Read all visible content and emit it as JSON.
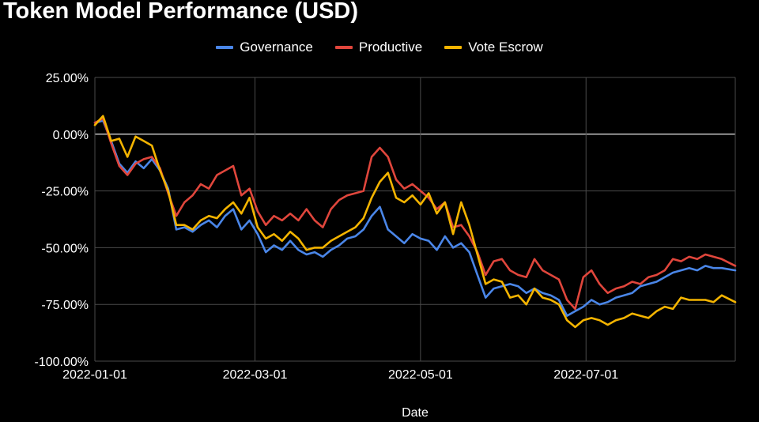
{
  "chart_data": {
    "type": "line",
    "title": "Token Model Performance (USD)",
    "xlabel": "Date",
    "ylabel": "",
    "ylim": [
      -100,
      25
    ],
    "xlim": [
      "2022-01-01",
      "2022-08-25"
    ],
    "grid": true,
    "legend": "top",
    "y_ticks": [
      "25.00%",
      "0.00%",
      "-25.00%",
      "-50.00%",
      "-75.00%",
      "-100.00%"
    ],
    "x_ticks": [
      "2022-01-01",
      "2022-03-01",
      "2022-05-01",
      "2022-07-01"
    ],
    "series": [
      {
        "name": "Governance",
        "color": "#4a86e8",
        "points": [
          [
            "2022-01-01",
            5
          ],
          [
            "2022-01-04",
            6
          ],
          [
            "2022-01-07",
            -3
          ],
          [
            "2022-01-10",
            -13
          ],
          [
            "2022-01-13",
            -17
          ],
          [
            "2022-01-16",
            -12
          ],
          [
            "2022-01-19",
            -15
          ],
          [
            "2022-01-22",
            -11
          ],
          [
            "2022-01-25",
            -16
          ],
          [
            "2022-01-28",
            -24
          ],
          [
            "2022-01-31",
            -42
          ],
          [
            "2022-02-03",
            -41
          ],
          [
            "2022-02-06",
            -43
          ],
          [
            "2022-02-09",
            -40
          ],
          [
            "2022-02-12",
            -38
          ],
          [
            "2022-02-15",
            -41
          ],
          [
            "2022-02-18",
            -36
          ],
          [
            "2022-02-21",
            -33
          ],
          [
            "2022-02-24",
            -42
          ],
          [
            "2022-02-27",
            -38
          ],
          [
            "2022-03-02",
            -44
          ],
          [
            "2022-03-05",
            -52
          ],
          [
            "2022-03-08",
            -49
          ],
          [
            "2022-03-11",
            -51
          ],
          [
            "2022-03-14",
            -47
          ],
          [
            "2022-03-17",
            -51
          ],
          [
            "2022-03-20",
            -53
          ],
          [
            "2022-03-23",
            -52
          ],
          [
            "2022-03-26",
            -54
          ],
          [
            "2022-03-29",
            -51
          ],
          [
            "2022-04-01",
            -49
          ],
          [
            "2022-04-04",
            -46
          ],
          [
            "2022-04-07",
            -45
          ],
          [
            "2022-04-10",
            -42
          ],
          [
            "2022-04-13",
            -36
          ],
          [
            "2022-04-16",
            -32
          ],
          [
            "2022-04-19",
            -42
          ],
          [
            "2022-04-22",
            -45
          ],
          [
            "2022-04-25",
            -48
          ],
          [
            "2022-04-28",
            -44
          ],
          [
            "2022-05-01",
            -46
          ],
          [
            "2022-05-04",
            -47
          ],
          [
            "2022-05-07",
            -51
          ],
          [
            "2022-05-10",
            -45
          ],
          [
            "2022-05-13",
            -50
          ],
          [
            "2022-05-16",
            -48
          ],
          [
            "2022-05-19",
            -52
          ],
          [
            "2022-05-22",
            -62
          ],
          [
            "2022-05-25",
            -72
          ],
          [
            "2022-05-28",
            -68
          ],
          [
            "2022-05-31",
            -67
          ],
          [
            "2022-06-03",
            -66
          ],
          [
            "2022-06-06",
            -67
          ],
          [
            "2022-06-09",
            -70
          ],
          [
            "2022-06-12",
            -68
          ],
          [
            "2022-06-15",
            -70
          ],
          [
            "2022-06-18",
            -71
          ],
          [
            "2022-06-21",
            -73
          ],
          [
            "2022-06-24",
            -80
          ],
          [
            "2022-06-27",
            -78
          ],
          [
            "2022-06-30",
            -76
          ],
          [
            "2022-07-03",
            -73
          ],
          [
            "2022-07-06",
            -75
          ],
          [
            "2022-07-09",
            -74
          ],
          [
            "2022-07-12",
            -72
          ],
          [
            "2022-07-15",
            -71
          ],
          [
            "2022-07-18",
            -70
          ],
          [
            "2022-07-21",
            -67
          ],
          [
            "2022-07-24",
            -66
          ],
          [
            "2022-07-27",
            -65
          ],
          [
            "2022-07-30",
            -63
          ],
          [
            "2022-08-02",
            -61
          ],
          [
            "2022-08-05",
            -60
          ],
          [
            "2022-08-08",
            -59
          ],
          [
            "2022-08-11",
            -60
          ],
          [
            "2022-08-14",
            -58
          ],
          [
            "2022-08-17",
            -59
          ],
          [
            "2022-08-20",
            -59
          ],
          [
            "2022-08-25",
            -60
          ]
        ]
      },
      {
        "name": "Productive",
        "color": "#e0463c",
        "points": [
          [
            "2022-01-01",
            5
          ],
          [
            "2022-01-04",
            7
          ],
          [
            "2022-01-07",
            -4
          ],
          [
            "2022-01-10",
            -14
          ],
          [
            "2022-01-13",
            -18
          ],
          [
            "2022-01-16",
            -13
          ],
          [
            "2022-01-19",
            -11
          ],
          [
            "2022-01-22",
            -10
          ],
          [
            "2022-01-25",
            -15
          ],
          [
            "2022-01-28",
            -26
          ],
          [
            "2022-01-31",
            -36
          ],
          [
            "2022-02-03",
            -30
          ],
          [
            "2022-02-06",
            -27
          ],
          [
            "2022-02-09",
            -22
          ],
          [
            "2022-02-12",
            -24
          ],
          [
            "2022-02-15",
            -18
          ],
          [
            "2022-02-18",
            -16
          ],
          [
            "2022-02-21",
            -14
          ],
          [
            "2022-02-24",
            -27
          ],
          [
            "2022-02-27",
            -24
          ],
          [
            "2022-03-02",
            -34
          ],
          [
            "2022-03-05",
            -40
          ],
          [
            "2022-03-08",
            -36
          ],
          [
            "2022-03-11",
            -38
          ],
          [
            "2022-03-14",
            -35
          ],
          [
            "2022-03-17",
            -38
          ],
          [
            "2022-03-20",
            -33
          ],
          [
            "2022-03-23",
            -38
          ],
          [
            "2022-03-26",
            -41
          ],
          [
            "2022-03-29",
            -33
          ],
          [
            "2022-04-01",
            -29
          ],
          [
            "2022-04-04",
            -27
          ],
          [
            "2022-04-07",
            -26
          ],
          [
            "2022-04-10",
            -25
          ],
          [
            "2022-04-13",
            -10
          ],
          [
            "2022-04-16",
            -6
          ],
          [
            "2022-04-19",
            -10
          ],
          [
            "2022-04-22",
            -20
          ],
          [
            "2022-04-25",
            -24
          ],
          [
            "2022-04-28",
            -22
          ],
          [
            "2022-05-01",
            -25
          ],
          [
            "2022-05-04",
            -28
          ],
          [
            "2022-05-07",
            -33
          ],
          [
            "2022-05-10",
            -30
          ],
          [
            "2022-05-13",
            -41
          ],
          [
            "2022-05-16",
            -40
          ],
          [
            "2022-05-19",
            -45
          ],
          [
            "2022-05-22",
            -52
          ],
          [
            "2022-05-25",
            -62
          ],
          [
            "2022-05-28",
            -56
          ],
          [
            "2022-05-31",
            -55
          ],
          [
            "2022-06-03",
            -60
          ],
          [
            "2022-06-06",
            -62
          ],
          [
            "2022-06-09",
            -63
          ],
          [
            "2022-06-12",
            -55
          ],
          [
            "2022-06-15",
            -60
          ],
          [
            "2022-06-18",
            -62
          ],
          [
            "2022-06-21",
            -64
          ],
          [
            "2022-06-24",
            -73
          ],
          [
            "2022-06-27",
            -77
          ],
          [
            "2022-06-30",
            -63
          ],
          [
            "2022-07-03",
            -60
          ],
          [
            "2022-07-06",
            -66
          ],
          [
            "2022-07-09",
            -70
          ],
          [
            "2022-07-12",
            -68
          ],
          [
            "2022-07-15",
            -67
          ],
          [
            "2022-07-18",
            -65
          ],
          [
            "2022-07-21",
            -66
          ],
          [
            "2022-07-24",
            -63
          ],
          [
            "2022-07-27",
            -62
          ],
          [
            "2022-07-30",
            -60
          ],
          [
            "2022-08-02",
            -55
          ],
          [
            "2022-08-05",
            -56
          ],
          [
            "2022-08-08",
            -54
          ],
          [
            "2022-08-11",
            -55
          ],
          [
            "2022-08-14",
            -53
          ],
          [
            "2022-08-17",
            -54
          ],
          [
            "2022-08-20",
            -55
          ],
          [
            "2022-08-25",
            -58
          ]
        ]
      },
      {
        "name": "Vote Escrow",
        "color": "#f4b400",
        "points": [
          [
            "2022-01-01",
            4
          ],
          [
            "2022-01-04",
            8
          ],
          [
            "2022-01-07",
            -3
          ],
          [
            "2022-01-10",
            -2
          ],
          [
            "2022-01-13",
            -10
          ],
          [
            "2022-01-16",
            -1
          ],
          [
            "2022-01-19",
            -3
          ],
          [
            "2022-01-22",
            -5
          ],
          [
            "2022-01-25",
            -16
          ],
          [
            "2022-01-28",
            -25
          ],
          [
            "2022-01-31",
            -40
          ],
          [
            "2022-02-03",
            -40
          ],
          [
            "2022-02-06",
            -42
          ],
          [
            "2022-02-09",
            -38
          ],
          [
            "2022-02-12",
            -36
          ],
          [
            "2022-02-15",
            -37
          ],
          [
            "2022-02-18",
            -33
          ],
          [
            "2022-02-21",
            -30
          ],
          [
            "2022-02-24",
            -35
          ],
          [
            "2022-02-27",
            -28
          ],
          [
            "2022-03-02",
            -41
          ],
          [
            "2022-03-05",
            -46
          ],
          [
            "2022-03-08",
            -44
          ],
          [
            "2022-03-11",
            -47
          ],
          [
            "2022-03-14",
            -43
          ],
          [
            "2022-03-17",
            -46
          ],
          [
            "2022-03-20",
            -51
          ],
          [
            "2022-03-23",
            -50
          ],
          [
            "2022-03-26",
            -50
          ],
          [
            "2022-03-29",
            -47
          ],
          [
            "2022-04-01",
            -45
          ],
          [
            "2022-04-04",
            -43
          ],
          [
            "2022-04-07",
            -41
          ],
          [
            "2022-04-10",
            -37
          ],
          [
            "2022-04-13",
            -28
          ],
          [
            "2022-04-16",
            -21
          ],
          [
            "2022-04-19",
            -17
          ],
          [
            "2022-04-22",
            -28
          ],
          [
            "2022-04-25",
            -30
          ],
          [
            "2022-04-28",
            -27
          ],
          [
            "2022-05-01",
            -31
          ],
          [
            "2022-05-04",
            -26
          ],
          [
            "2022-05-07",
            -35
          ],
          [
            "2022-05-10",
            -30
          ],
          [
            "2022-05-13",
            -44
          ],
          [
            "2022-05-16",
            -30
          ],
          [
            "2022-05-19",
            -40
          ],
          [
            "2022-05-22",
            -53
          ],
          [
            "2022-05-25",
            -66
          ],
          [
            "2022-05-28",
            -64
          ],
          [
            "2022-05-31",
            -65
          ],
          [
            "2022-06-03",
            -72
          ],
          [
            "2022-06-06",
            -71
          ],
          [
            "2022-06-09",
            -75
          ],
          [
            "2022-06-12",
            -68
          ],
          [
            "2022-06-15",
            -72
          ],
          [
            "2022-06-18",
            -73
          ],
          [
            "2022-06-21",
            -75
          ],
          [
            "2022-06-24",
            -82
          ],
          [
            "2022-06-27",
            -85
          ],
          [
            "2022-06-30",
            -82
          ],
          [
            "2022-07-03",
            -81
          ],
          [
            "2022-07-06",
            -82
          ],
          [
            "2022-07-09",
            -84
          ],
          [
            "2022-07-12",
            -82
          ],
          [
            "2022-07-15",
            -81
          ],
          [
            "2022-07-18",
            -79
          ],
          [
            "2022-07-21",
            -80
          ],
          [
            "2022-07-24",
            -81
          ],
          [
            "2022-07-27",
            -78
          ],
          [
            "2022-07-30",
            -76
          ],
          [
            "2022-08-02",
            -77
          ],
          [
            "2022-08-05",
            -72
          ],
          [
            "2022-08-08",
            -73
          ],
          [
            "2022-08-11",
            -73
          ],
          [
            "2022-08-14",
            -73
          ],
          [
            "2022-08-17",
            -74
          ],
          [
            "2022-08-20",
            -71
          ],
          [
            "2022-08-25",
            -74
          ]
        ]
      }
    ]
  }
}
